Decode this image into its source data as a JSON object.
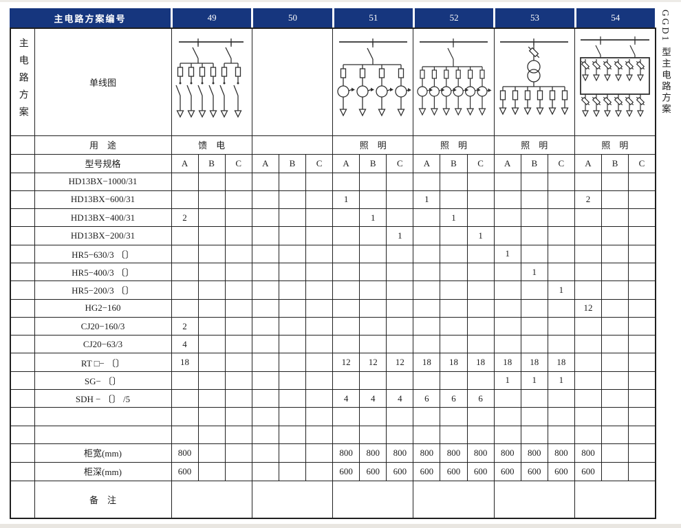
{
  "page": {
    "side_label": "GGD1 型主电路方案",
    "colors": {
      "header_bg": "#16367e",
      "header_text": "#ffffff",
      "border": "#1f1f1f"
    }
  },
  "header": {
    "title": "主电路方案编号",
    "schemes": [
      "49",
      "50",
      "51",
      "52",
      "53",
      "54"
    ]
  },
  "left_panel": {
    "vertical_label": "主电路方案"
  },
  "diagram_row": {
    "label": "单线图"
  },
  "usage_row": {
    "label": "用　途",
    "values": [
      "馈　电",
      "",
      "照　明",
      "照　明",
      "照　明",
      "照　明"
    ]
  },
  "spec_row": {
    "label": "型号规格",
    "sub_columns": [
      "A",
      "B",
      "C"
    ]
  },
  "model_rows": [
    {
      "label": "HD13BX−1000/31",
      "cells": [
        "",
        "",
        "",
        "",
        "",
        "",
        "",
        "",
        "",
        "",
        "",
        "",
        "",
        "",
        "",
        "",
        "",
        ""
      ]
    },
    {
      "label": "HD13BX−600/31",
      "cells": [
        "",
        "",
        "",
        "",
        "",
        "",
        "1",
        "",
        "",
        "1",
        "",
        "",
        "",
        "",
        "",
        "2",
        "",
        ""
      ]
    },
    {
      "label": "HD13BX−400/31",
      "cells": [
        "2",
        "",
        "",
        "",
        "",
        "",
        "",
        "1",
        "",
        "",
        "1",
        "",
        "",
        "",
        "",
        "",
        "",
        ""
      ]
    },
    {
      "label": "HD13BX−200/31",
      "cells": [
        "",
        "",
        "",
        "",
        "",
        "",
        "",
        "",
        "1",
        "",
        "",
        "1",
        "",
        "",
        "",
        "",
        "",
        ""
      ]
    },
    {
      "label": "HR5−630/3 〔〕",
      "cells": [
        "",
        "",
        "",
        "",
        "",
        "",
        "",
        "",
        "",
        "",
        "",
        "",
        "1",
        "",
        "",
        "",
        "",
        ""
      ]
    },
    {
      "label": "HR5−400/3 〔〕",
      "cells": [
        "",
        "",
        "",
        "",
        "",
        "",
        "",
        "",
        "",
        "",
        "",
        "",
        "",
        "1",
        "",
        "",
        "",
        ""
      ]
    },
    {
      "label": "HR5−200/3 〔〕",
      "cells": [
        "",
        "",
        "",
        "",
        "",
        "",
        "",
        "",
        "",
        "",
        "",
        "",
        "",
        "",
        "1",
        "",
        "",
        ""
      ]
    },
    {
      "label": "HG2−160",
      "cells": [
        "",
        "",
        "",
        "",
        "",
        "",
        "",
        "",
        "",
        "",
        "",
        "",
        "",
        "",
        "",
        "12",
        "",
        ""
      ]
    },
    {
      "label": "CJ20−160/3",
      "cells": [
        "2",
        "",
        "",
        "",
        "",
        "",
        "",
        "",
        "",
        "",
        "",
        "",
        "",
        "",
        "",
        "",
        "",
        ""
      ]
    },
    {
      "label": "CJ20−63/3",
      "cells": [
        "4",
        "",
        "",
        "",
        "",
        "",
        "",
        "",
        "",
        "",
        "",
        "",
        "",
        "",
        "",
        "",
        "",
        ""
      ]
    },
    {
      "label": "RT □− 〔〕",
      "cells": [
        "18",
        "",
        "",
        "",
        "",
        "",
        "12",
        "12",
        "12",
        "18",
        "18",
        "18",
        "18",
        "18",
        "18",
        "",
        "",
        ""
      ]
    },
    {
      "label": "SG− 〔〕",
      "cells": [
        "",
        "",
        "",
        "",
        "",
        "",
        "",
        "",
        "",
        "",
        "",
        "",
        "1",
        "1",
        "1",
        "",
        "",
        ""
      ]
    },
    {
      "label": "SDH − 〔〕 /5",
      "cells": [
        "",
        "",
        "",
        "",
        "",
        "",
        "4",
        "4",
        "4",
        "6",
        "6",
        "6",
        "",
        "",
        "",
        "",
        "",
        ""
      ]
    },
    {
      "label": "",
      "cells": [
        "",
        "",
        "",
        "",
        "",
        "",
        "",
        "",
        "",
        "",
        "",
        "",
        "",
        "",
        "",
        "",
        "",
        ""
      ]
    },
    {
      "label": "",
      "cells": [
        "",
        "",
        "",
        "",
        "",
        "",
        "",
        "",
        "",
        "",
        "",
        "",
        "",
        "",
        "",
        "",
        "",
        ""
      ]
    }
  ],
  "size_rows": [
    {
      "label": "柜宽(mm)",
      "cells": [
        "800",
        "",
        "",
        "",
        "",
        "",
        "800",
        "800",
        "800",
        "800",
        "800",
        "800",
        "800",
        "800",
        "800",
        "800",
        "",
        ""
      ]
    },
    {
      "label": "柜深(mm)",
      "cells": [
        "600",
        "",
        "",
        "",
        "",
        "",
        "600",
        "600",
        "600",
        "600",
        "600",
        "600",
        "600",
        "600",
        "600",
        "600",
        "",
        ""
      ]
    }
  ],
  "remark_row": {
    "label": "备　注"
  }
}
